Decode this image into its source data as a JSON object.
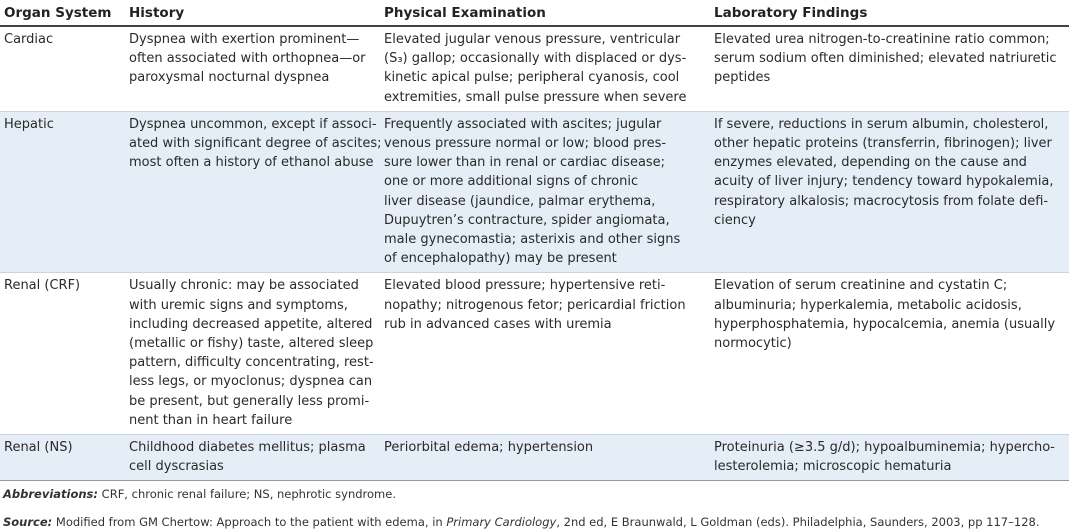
{
  "headers": [
    "Organ System",
    "History",
    "Physical Examination",
    "Laboratory Findings"
  ],
  "rows": [
    {
      "organ": "Cardiac",
      "history": [
        "Dyspnea with exertion prominent—",
        "often associated with orthopnea—or",
        "paroxysmal nocturnal dyspnea"
      ],
      "exam": [
        "Elevated jugular venous pressure, ventricular",
        "(S₃) gallop; occasionally with displaced or dys-",
        "kinetic apical pulse; peripheral cyanosis, cool",
        "extremities, small pulse pressure when severe"
      ],
      "lab": [
        "Elevated urea nitrogen-to-creatinine ratio common;",
        "serum sodium often diminished; elevated natriuretic",
        "peptides"
      ]
    },
    {
      "organ": "Hepatic",
      "history": [
        "Dyspnea uncommon, except if associ-",
        "ated with significant degree of ascites;",
        "most often a history of ethanol abuse"
      ],
      "exam": [
        "Frequently associated with ascites; jugular",
        "venous pressure normal or low; blood pres-",
        "sure lower than in renal or cardiac disease;",
        "one or more additional signs of chronic",
        "liver disease (jaundice, palmar erythema,",
        "Dupuytren’s contracture, spider angiomata,",
        "male gynecomastia; asterixis and other signs",
        "of encephalopathy) may be present"
      ],
      "lab": [
        "If severe, reductions in serum albumin, cholesterol,",
        "other hepatic proteins (transferrin, fibrinogen); liver",
        "enzymes elevated, depending on the cause and",
        "acuity of liver injury; tendency toward hypokalemia,",
        "respiratory alkalosis; macrocytosis from folate defi-",
        "ciency"
      ]
    },
    {
      "organ": "Renal (CRF)",
      "history": [
        "Usually chronic: may be associated",
        "with uremic signs and symptoms,",
        "including decreased appetite, altered",
        "(metallic or fishy) taste, altered sleep",
        "pattern, difficulty concentrating, rest-",
        "less legs, or myoclonus; dyspnea can",
        "be present, but generally less promi-",
        "nent than in heart failure"
      ],
      "exam": [
        "Elevated blood pressure; hypertensive reti-",
        "nopathy; nitrogenous fetor; pericardial friction",
        "rub in advanced cases with uremia"
      ],
      "lab": [
        "Elevation of serum creatinine and cystatin C;",
        "albuminuria; hyperkalemia, metabolic acidosis,",
        "hyperphosphatemia, hypocalcemia, anemia (usually",
        "normocytic)"
      ]
    },
    {
      "organ": "Renal (NS)",
      "history": [
        "Childhood diabetes mellitus; plasma",
        "cell dyscrasias"
      ],
      "exam": [
        "Periorbital edema; hypertension"
      ],
      "lab": [
        "Proteinuria (≥3.5 g/d); hypoalbuminemia; hyperchο-",
        "lesterolemia; microscopic hematuria"
      ]
    }
  ],
  "abbreviations": {
    "label": "Abbreviations:",
    "text": " CRF, chronic renal failure; NS, nephrotic syndrome."
  },
  "source": {
    "label": "Source:",
    "text1": " Modified from GM Chertow: Approach to the patient with edema, in ",
    "italic": "Primary Cardiology",
    "text2": ", 2nd ed, E Braunwald, L Goldman (eds). Philadelphia, Saunders, 2003, pp 117–128."
  }
}
